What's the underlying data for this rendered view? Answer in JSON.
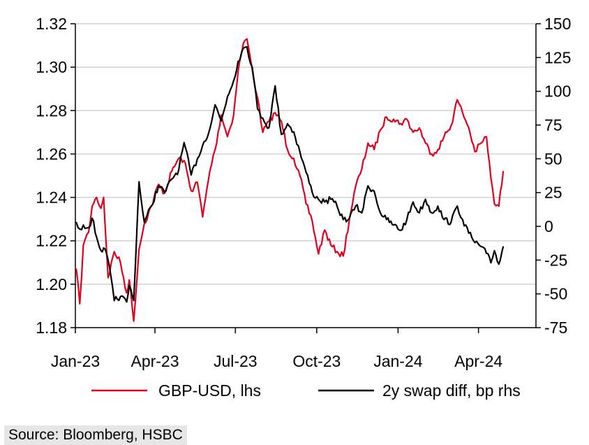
{
  "chart_data": {
    "type": "line",
    "title": "",
    "x_ticks": [
      "Jan-23",
      "Apr-23",
      "Jul-23",
      "Oct-23",
      "Jan-24",
      "Apr-24"
    ],
    "y_left": {
      "ticks": [
        "1.18",
        "1.20",
        "1.22",
        "1.24",
        "1.26",
        "1.28",
        "1.30",
        "1.32"
      ],
      "lim": [
        1.18,
        1.32
      ]
    },
    "y_right": {
      "ticks": [
        "-75",
        "-50",
        "-25",
        "0",
        "25",
        "50",
        "75",
        "100",
        "125",
        "150"
      ],
      "lim": [
        -75,
        150
      ]
    },
    "grid": "horizontal",
    "legend_position": "bottom",
    "series": [
      {
        "name": "GBP-USD, lhs",
        "axis": "left",
        "color": "#e0001b",
        "points": [
          [
            "2023-01-02",
            1.207
          ],
          [
            "2023-01-06",
            1.191
          ],
          [
            "2023-01-10",
            1.218
          ],
          [
            "2023-01-16",
            1.224
          ],
          [
            "2023-01-20",
            1.236
          ],
          [
            "2023-01-25",
            1.24
          ],
          [
            "2023-01-30",
            1.235
          ],
          [
            "2023-02-02",
            1.24
          ],
          [
            "2023-02-07",
            1.203
          ],
          [
            "2023-02-14",
            1.215
          ],
          [
            "2023-02-21",
            1.21
          ],
          [
            "2023-02-28",
            1.196
          ],
          [
            "2023-03-03",
            1.202
          ],
          [
            "2023-03-08",
            1.183
          ],
          [
            "2023-03-14",
            1.216
          ],
          [
            "2023-03-20",
            1.228
          ],
          [
            "2023-03-28",
            1.236
          ],
          [
            "2023-04-05",
            1.246
          ],
          [
            "2023-04-12",
            1.242
          ],
          [
            "2023-04-20",
            1.252
          ],
          [
            "2023-04-28",
            1.258
          ],
          [
            "2023-05-04",
            1.257
          ],
          [
            "2023-05-12",
            1.243
          ],
          [
            "2023-05-19",
            1.247
          ],
          [
            "2023-05-25",
            1.231
          ],
          [
            "2023-06-02",
            1.252
          ],
          [
            "2023-06-08",
            1.262
          ],
          [
            "2023-06-15",
            1.278
          ],
          [
            "2023-06-22",
            1.268
          ],
          [
            "2023-06-29",
            1.278
          ],
          [
            "2023-07-04",
            1.298
          ],
          [
            "2023-07-10",
            1.311
          ],
          [
            "2023-07-14",
            1.313
          ],
          [
            "2023-07-20",
            1.299
          ],
          [
            "2023-07-26",
            1.286
          ],
          [
            "2023-08-01",
            1.27
          ],
          [
            "2023-08-08",
            1.275
          ],
          [
            "2023-08-15",
            1.279
          ],
          [
            "2023-08-22",
            1.275
          ],
          [
            "2023-08-29",
            1.262
          ],
          [
            "2023-09-05",
            1.258
          ],
          [
            "2023-09-12",
            1.25
          ],
          [
            "2023-09-19",
            1.237
          ],
          [
            "2023-09-26",
            1.229
          ],
          [
            "2023-10-03",
            1.214
          ],
          [
            "2023-10-10",
            1.225
          ],
          [
            "2023-10-17",
            1.218
          ],
          [
            "2023-10-24",
            1.215
          ],
          [
            "2023-10-31",
            1.213
          ],
          [
            "2023-11-07",
            1.23
          ],
          [
            "2023-11-14",
            1.245
          ],
          [
            "2023-11-21",
            1.253
          ],
          [
            "2023-11-28",
            1.265
          ],
          [
            "2023-12-05",
            1.262
          ],
          [
            "2023-12-12",
            1.271
          ],
          [
            "2023-12-19",
            1.277
          ],
          [
            "2023-12-27",
            1.276
          ],
          [
            "2024-01-04",
            1.274
          ],
          [
            "2024-01-11",
            1.276
          ],
          [
            "2024-01-18",
            1.27
          ],
          [
            "2024-01-25",
            1.272
          ],
          [
            "2024-02-01",
            1.265
          ],
          [
            "2024-02-08",
            1.26
          ],
          [
            "2024-02-15",
            1.262
          ],
          [
            "2024-02-22",
            1.268
          ],
          [
            "2024-03-01",
            1.273
          ],
          [
            "2024-03-08",
            1.285
          ],
          [
            "2024-03-14",
            1.279
          ],
          [
            "2024-03-21",
            1.272
          ],
          [
            "2024-03-28",
            1.261
          ],
          [
            "2024-04-04",
            1.265
          ],
          [
            "2024-04-10",
            1.268
          ],
          [
            "2024-04-15",
            1.249
          ],
          [
            "2024-04-19",
            1.237
          ],
          [
            "2024-04-24",
            1.236
          ],
          [
            "2024-04-29",
            1.252
          ]
        ]
      },
      {
        "name": "2y swap diff, bp rhs",
        "axis": "right",
        "color": "#000000",
        "points": [
          [
            "2023-01-02",
            3
          ],
          [
            "2023-01-06",
            -2
          ],
          [
            "2023-01-10",
            1
          ],
          [
            "2023-01-16",
            -1
          ],
          [
            "2023-01-20",
            6
          ],
          [
            "2023-01-25",
            -8
          ],
          [
            "2023-01-30",
            -18
          ],
          [
            "2023-02-02",
            -16
          ],
          [
            "2023-02-07",
            -25
          ],
          [
            "2023-02-14",
            -55
          ],
          [
            "2023-02-21",
            -52
          ],
          [
            "2023-02-28",
            -56
          ],
          [
            "2023-03-03",
            -44
          ],
          [
            "2023-03-08",
            -55
          ],
          [
            "2023-03-14",
            33
          ],
          [
            "2023-03-20",
            3
          ],
          [
            "2023-03-28",
            15
          ],
          [
            "2023-04-05",
            30
          ],
          [
            "2023-04-12",
            25
          ],
          [
            "2023-04-20",
            35
          ],
          [
            "2023-04-28",
            42
          ],
          [
            "2023-05-04",
            62
          ],
          [
            "2023-05-12",
            38
          ],
          [
            "2023-05-19",
            50
          ],
          [
            "2023-05-25",
            60
          ],
          [
            "2023-06-02",
            72
          ],
          [
            "2023-06-08",
            90
          ],
          [
            "2023-06-15",
            78
          ],
          [
            "2023-06-22",
            96
          ],
          [
            "2023-06-29",
            108
          ],
          [
            "2023-07-04",
            122
          ],
          [
            "2023-07-10",
            132
          ],
          [
            "2023-07-14",
            133
          ],
          [
            "2023-07-20",
            118
          ],
          [
            "2023-07-26",
            87
          ],
          [
            "2023-08-01",
            80
          ],
          [
            "2023-08-08",
            73
          ],
          [
            "2023-08-15",
            104
          ],
          [
            "2023-08-22",
            68
          ],
          [
            "2023-08-29",
            76
          ],
          [
            "2023-09-05",
            70
          ],
          [
            "2023-09-12",
            55
          ],
          [
            "2023-09-19",
            40
          ],
          [
            "2023-09-26",
            25
          ],
          [
            "2023-10-03",
            20
          ],
          [
            "2023-10-10",
            18
          ],
          [
            "2023-10-17",
            20
          ],
          [
            "2023-10-24",
            15
          ],
          [
            "2023-10-31",
            5
          ],
          [
            "2023-11-07",
            6
          ],
          [
            "2023-11-14",
            15
          ],
          [
            "2023-11-21",
            10
          ],
          [
            "2023-11-28",
            30
          ],
          [
            "2023-12-05",
            26
          ],
          [
            "2023-12-12",
            10
          ],
          [
            "2023-12-19",
            5
          ],
          [
            "2023-12-27",
            1
          ],
          [
            "2024-01-04",
            -3
          ],
          [
            "2024-01-11",
            5
          ],
          [
            "2024-01-18",
            18
          ],
          [
            "2024-01-25",
            10
          ],
          [
            "2024-02-01",
            20
          ],
          [
            "2024-02-08",
            10
          ],
          [
            "2024-02-15",
            15
          ],
          [
            "2024-02-22",
            5
          ],
          [
            "2024-03-01",
            3
          ],
          [
            "2024-03-08",
            15
          ],
          [
            "2024-03-14",
            5
          ],
          [
            "2024-03-21",
            -5
          ],
          [
            "2024-03-28",
            -12
          ],
          [
            "2024-04-04",
            -15
          ],
          [
            "2024-04-10",
            -20
          ],
          [
            "2024-04-15",
            -27
          ],
          [
            "2024-04-19",
            -18
          ],
          [
            "2024-04-24",
            -28
          ],
          [
            "2024-04-29",
            -15
          ]
        ]
      }
    ]
  },
  "source": "Source: Bloomberg, HSBC"
}
